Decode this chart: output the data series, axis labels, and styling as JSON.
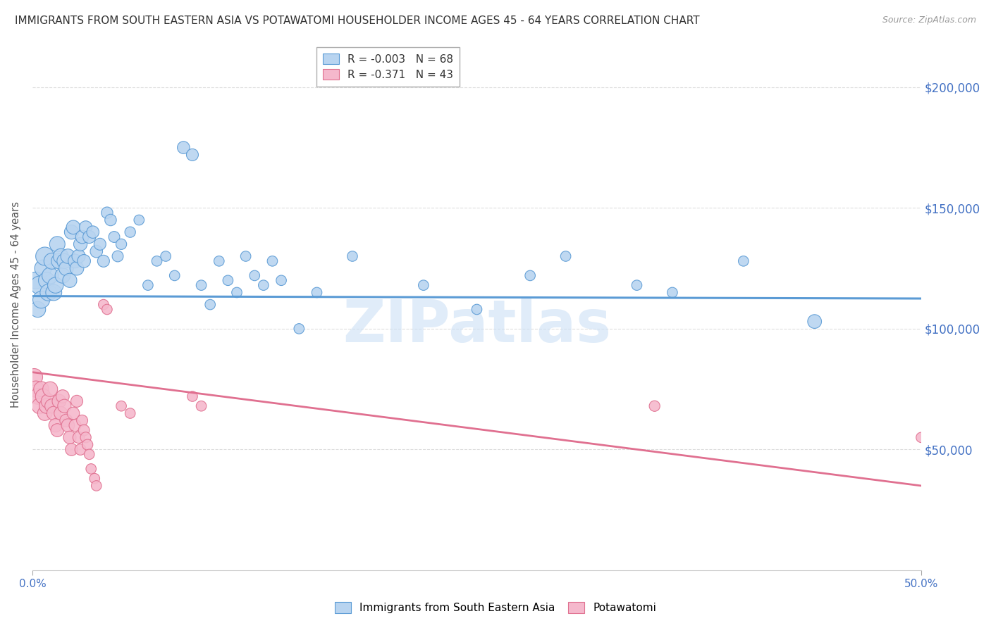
{
  "title": "IMMIGRANTS FROM SOUTH EASTERN ASIA VS POTAWATOMI HOUSEHOLDER INCOME AGES 45 - 64 YEARS CORRELATION CHART",
  "source": "Source: ZipAtlas.com",
  "ylabel": "Householder Income Ages 45 - 64 years",
  "xlim": [
    0.0,
    0.5
  ],
  "ylim": [
    0,
    220000
  ],
  "yticks": [
    50000,
    100000,
    150000,
    200000
  ],
  "ytick_labels": [
    "$50,000",
    "$100,000",
    "$150,000",
    "$200,000"
  ],
  "xticks": [
    0.0,
    0.5
  ],
  "xtick_labels": [
    "0.0%",
    "50.0%"
  ],
  "blue_R": "-0.003",
  "blue_N": "68",
  "pink_R": "-0.371",
  "pink_N": "43",
  "blue_color": "#b8d4f0",
  "blue_edge_color": "#5b9bd5",
  "pink_color": "#f5b8cc",
  "pink_edge_color": "#e07090",
  "blue_scatter": [
    [
      0.002,
      120000
    ],
    [
      0.003,
      108000
    ],
    [
      0.004,
      118000
    ],
    [
      0.005,
      112000
    ],
    [
      0.006,
      125000
    ],
    [
      0.007,
      130000
    ],
    [
      0.008,
      120000
    ],
    [
      0.009,
      115000
    ],
    [
      0.01,
      122000
    ],
    [
      0.011,
      128000
    ],
    [
      0.012,
      115000
    ],
    [
      0.013,
      118000
    ],
    [
      0.014,
      135000
    ],
    [
      0.015,
      128000
    ],
    [
      0.016,
      130000
    ],
    [
      0.017,
      122000
    ],
    [
      0.018,
      128000
    ],
    [
      0.019,
      125000
    ],
    [
      0.02,
      130000
    ],
    [
      0.021,
      120000
    ],
    [
      0.022,
      140000
    ],
    [
      0.023,
      142000
    ],
    [
      0.024,
      128000
    ],
    [
      0.025,
      125000
    ],
    [
      0.026,
      130000
    ],
    [
      0.027,
      135000
    ],
    [
      0.028,
      138000
    ],
    [
      0.029,
      128000
    ],
    [
      0.03,
      142000
    ],
    [
      0.032,
      138000
    ],
    [
      0.034,
      140000
    ],
    [
      0.036,
      132000
    ],
    [
      0.038,
      135000
    ],
    [
      0.04,
      128000
    ],
    [
      0.042,
      148000
    ],
    [
      0.044,
      145000
    ],
    [
      0.046,
      138000
    ],
    [
      0.048,
      130000
    ],
    [
      0.05,
      135000
    ],
    [
      0.055,
      140000
    ],
    [
      0.06,
      145000
    ],
    [
      0.065,
      118000
    ],
    [
      0.07,
      128000
    ],
    [
      0.075,
      130000
    ],
    [
      0.08,
      122000
    ],
    [
      0.085,
      175000
    ],
    [
      0.09,
      172000
    ],
    [
      0.095,
      118000
    ],
    [
      0.1,
      110000
    ],
    [
      0.105,
      128000
    ],
    [
      0.11,
      120000
    ],
    [
      0.115,
      115000
    ],
    [
      0.12,
      130000
    ],
    [
      0.125,
      122000
    ],
    [
      0.13,
      118000
    ],
    [
      0.135,
      128000
    ],
    [
      0.14,
      120000
    ],
    [
      0.15,
      100000
    ],
    [
      0.16,
      115000
    ],
    [
      0.18,
      130000
    ],
    [
      0.22,
      118000
    ],
    [
      0.25,
      108000
    ],
    [
      0.28,
      122000
    ],
    [
      0.3,
      130000
    ],
    [
      0.34,
      118000
    ],
    [
      0.36,
      115000
    ],
    [
      0.4,
      128000
    ],
    [
      0.44,
      103000
    ]
  ],
  "blue_sizes": [
    300,
    260,
    350,
    300,
    300,
    350,
    280,
    290,
    280,
    270,
    270,
    260,
    250,
    250,
    240,
    240,
    230,
    220,
    220,
    210,
    210,
    200,
    200,
    200,
    190,
    190,
    180,
    180,
    170,
    170,
    160,
    160,
    150,
    150,
    140,
    140,
    130,
    130,
    120,
    120,
    110,
    110,
    110,
    110,
    110,
    160,
    150,
    110,
    110,
    110,
    110,
    110,
    110,
    110,
    110,
    110,
    110,
    110,
    110,
    110,
    110,
    110,
    110,
    110,
    110,
    110,
    110,
    200
  ],
  "pink_scatter": [
    [
      0.001,
      80000
    ],
    [
      0.002,
      75000
    ],
    [
      0.003,
      72000
    ],
    [
      0.004,
      68000
    ],
    [
      0.005,
      75000
    ],
    [
      0.006,
      72000
    ],
    [
      0.007,
      65000
    ],
    [
      0.008,
      68000
    ],
    [
      0.009,
      70000
    ],
    [
      0.01,
      75000
    ],
    [
      0.011,
      68000
    ],
    [
      0.012,
      65000
    ],
    [
      0.013,
      60000
    ],
    [
      0.014,
      58000
    ],
    [
      0.015,
      70000
    ],
    [
      0.016,
      65000
    ],
    [
      0.017,
      72000
    ],
    [
      0.018,
      68000
    ],
    [
      0.019,
      62000
    ],
    [
      0.02,
      60000
    ],
    [
      0.021,
      55000
    ],
    [
      0.022,
      50000
    ],
    [
      0.023,
      65000
    ],
    [
      0.024,
      60000
    ],
    [
      0.025,
      70000
    ],
    [
      0.026,
      55000
    ],
    [
      0.027,
      50000
    ],
    [
      0.028,
      62000
    ],
    [
      0.029,
      58000
    ],
    [
      0.03,
      55000
    ],
    [
      0.031,
      52000
    ],
    [
      0.032,
      48000
    ],
    [
      0.033,
      42000
    ],
    [
      0.035,
      38000
    ],
    [
      0.036,
      35000
    ],
    [
      0.04,
      110000
    ],
    [
      0.042,
      108000
    ],
    [
      0.05,
      68000
    ],
    [
      0.055,
      65000
    ],
    [
      0.09,
      72000
    ],
    [
      0.095,
      68000
    ],
    [
      0.35,
      68000
    ],
    [
      0.5,
      55000
    ]
  ],
  "pink_sizes": [
    300,
    280,
    260,
    250,
    240,
    240,
    220,
    230,
    220,
    230,
    210,
    200,
    190,
    180,
    200,
    190,
    180,
    190,
    170,
    180,
    170,
    160,
    160,
    150,
    150,
    140,
    130,
    130,
    130,
    120,
    120,
    110,
    110,
    110,
    110,
    110,
    110,
    110,
    110,
    110,
    110,
    120,
    110
  ],
  "blue_trend_x": [
    0.0,
    0.5
  ],
  "blue_trend_y": [
    113500,
    112500
  ],
  "pink_trend_x": [
    0.0,
    0.5
  ],
  "pink_trend_y": [
    82000,
    35000
  ],
  "watermark": "ZIPatlas",
  "watermark_color": "#cce0f5",
  "grid_color": "#dddddd",
  "right_ytick_color": "#4472c4",
  "tick_label_color": "#4472c4",
  "background_color": "#ffffff"
}
